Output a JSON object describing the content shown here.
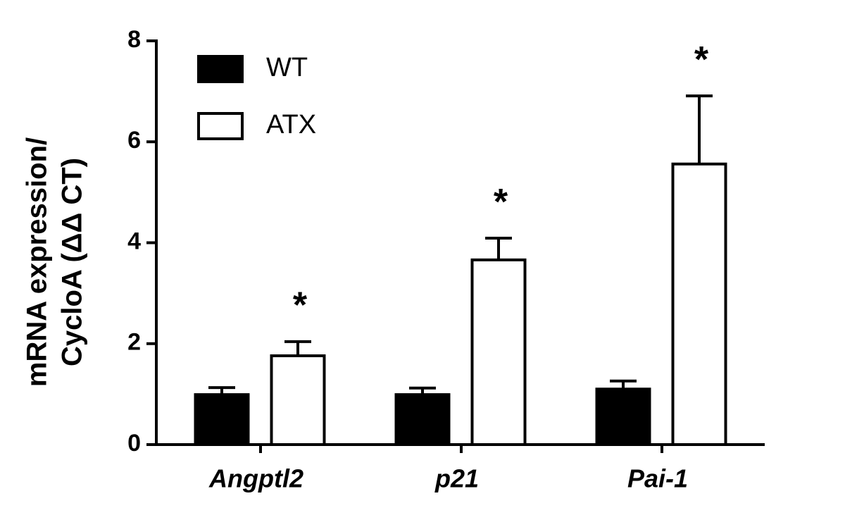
{
  "chart_data": {
    "type": "bar",
    "ylabel": [
      "mRNA expression/",
      "CycloA (ΔΔ CT)"
    ],
    "categories": [
      "Angptl2",
      "p21",
      "Pai-1"
    ],
    "series": [
      {
        "name": "WT",
        "color": "#000000",
        "values": [
          0.99,
          0.99,
          1.1
        ],
        "errors": [
          0.14,
          0.13,
          0.16
        ]
      },
      {
        "name": "ATX",
        "color": "#ffffff",
        "values": [
          1.76,
          3.66,
          5.56
        ],
        "errors": [
          0.28,
          0.43,
          1.35
        ],
        "markers": [
          "*",
          "*",
          "*"
        ]
      }
    ],
    "ylim": [
      0,
      8
    ],
    "yticks": [
      0,
      2,
      4,
      6,
      8
    ],
    "legend": "top-left"
  }
}
